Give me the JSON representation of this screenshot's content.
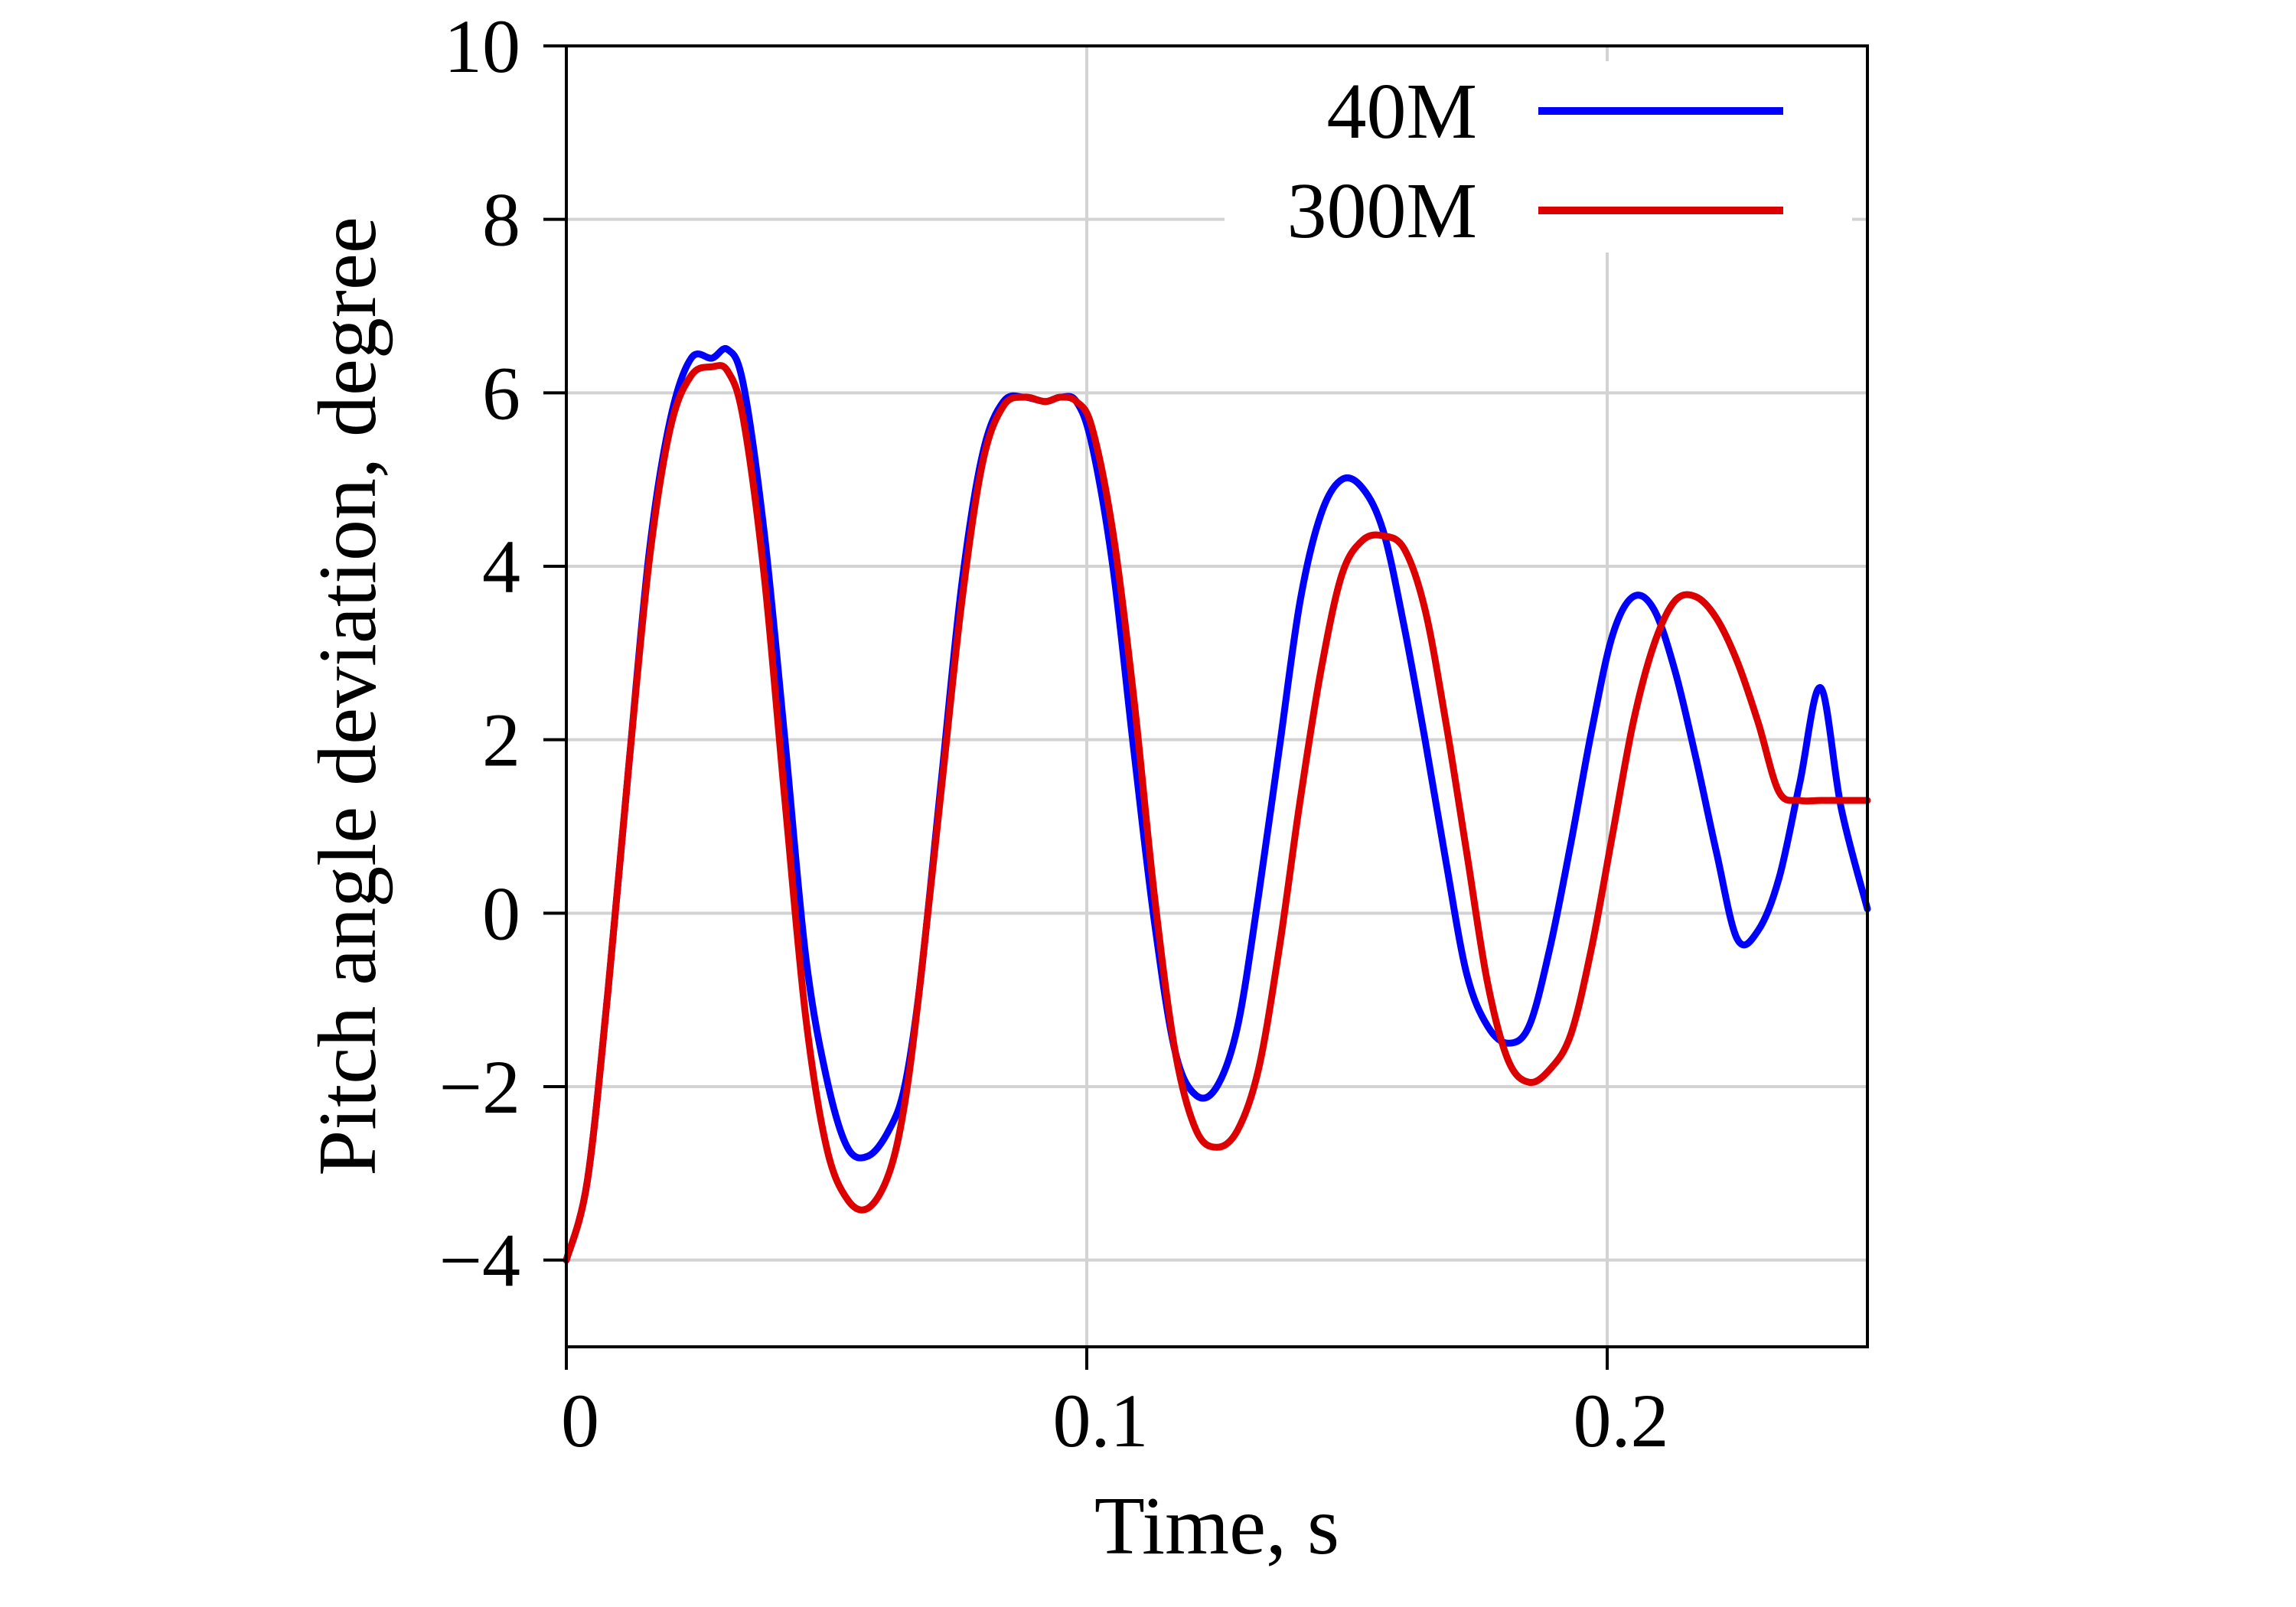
{
  "chart_data": {
    "type": "line",
    "xlabel": "Time, s",
    "ylabel": "Pitch angle deviation, degree",
    "xlim": [
      0,
      0.25
    ],
    "ylim": [
      -5,
      10
    ],
    "xticks": [
      0,
      0.1,
      0.2
    ],
    "xtick_labels": [
      "0",
      "0.1",
      "0.2"
    ],
    "yticks": [
      -4,
      -2,
      0,
      2,
      4,
      6,
      8,
      10
    ],
    "ytick_labels": [
      "−4",
      "−2",
      "0",
      "2",
      "4",
      "6",
      "8",
      "10"
    ],
    "grid": true,
    "legend_position": "top-right",
    "series": [
      {
        "name": "40M",
        "color": "#0000ff",
        "x": [
          0,
          0.004,
          0.008,
          0.012,
          0.016,
          0.02,
          0.024,
          0.028,
          0.031,
          0.034,
          0.038,
          0.042,
          0.046,
          0.05,
          0.054,
          0.058,
          0.062,
          0.065,
          0.068,
          0.072,
          0.076,
          0.08,
          0.084,
          0.088,
          0.092,
          0.095,
          0.098,
          0.101,
          0.105,
          0.109,
          0.113,
          0.117,
          0.121,
          0.125,
          0.129,
          0.133,
          0.137,
          0.141,
          0.145,
          0.149,
          0.153,
          0.157,
          0.161,
          0.165,
          0.169,
          0.173,
          0.177,
          0.181,
          0.185,
          0.189,
          0.193,
          0.197,
          0.201,
          0.205,
          0.209,
          0.213,
          0.217,
          0.221,
          0.225,
          0.229,
          0.233,
          0.237,
          0.241,
          0.245,
          0.25
        ],
        "y": [
          -4.0,
          -3.1,
          -0.9,
          1.7,
          4.2,
          5.7,
          6.4,
          6.4,
          6.5,
          6.1,
          4.4,
          2.0,
          -0.5,
          -1.9,
          -2.7,
          -2.8,
          -2.5,
          -2.0,
          -0.8,
          1.5,
          3.8,
          5.3,
          5.9,
          5.95,
          5.9,
          5.95,
          5.9,
          5.4,
          4.0,
          1.9,
          -0.1,
          -1.6,
          -2.1,
          -2.0,
          -1.3,
          0.2,
          1.9,
          3.6,
          4.6,
          5.0,
          4.9,
          4.4,
          3.3,
          2.0,
          0.6,
          -0.7,
          -1.3,
          -1.5,
          -1.3,
          -0.4,
          0.8,
          2.1,
          3.2,
          3.65,
          3.5,
          2.8,
          1.8,
          0.7,
          -0.3,
          -0.2,
          0.4,
          1.5,
          2.6,
          1.2,
          0.05
        ]
      },
      {
        "name": "300M",
        "color": "#dd0000",
        "x": [
          0,
          0.004,
          0.008,
          0.012,
          0.016,
          0.02,
          0.024,
          0.028,
          0.031,
          0.034,
          0.038,
          0.042,
          0.046,
          0.05,
          0.054,
          0.058,
          0.062,
          0.065,
          0.068,
          0.072,
          0.076,
          0.08,
          0.084,
          0.088,
          0.092,
          0.095,
          0.098,
          0.101,
          0.105,
          0.109,
          0.113,
          0.117,
          0.121,
          0.125,
          0.129,
          0.133,
          0.137,
          0.141,
          0.145,
          0.149,
          0.153,
          0.157,
          0.161,
          0.165,
          0.169,
          0.173,
          0.177,
          0.181,
          0.185,
          0.189,
          0.193,
          0.197,
          0.201,
          0.205,
          0.209,
          0.213,
          0.217,
          0.221,
          0.225,
          0.229,
          0.233,
          0.237,
          0.241,
          0.245,
          0.25
        ],
        "y": [
          -4.0,
          -3.1,
          -0.9,
          1.7,
          4.1,
          5.6,
          6.2,
          6.3,
          6.25,
          5.7,
          3.9,
          1.3,
          -1.2,
          -2.7,
          -3.3,
          -3.4,
          -3.0,
          -2.2,
          -0.8,
          1.4,
          3.6,
          5.2,
          5.85,
          5.95,
          5.9,
          5.95,
          5.9,
          5.6,
          4.4,
          2.5,
          0.2,
          -1.6,
          -2.5,
          -2.7,
          -2.5,
          -1.8,
          -0.4,
          1.3,
          2.8,
          3.9,
          4.3,
          4.35,
          4.2,
          3.5,
          2.2,
          0.7,
          -0.8,
          -1.7,
          -1.95,
          -1.8,
          -1.4,
          -0.4,
          0.9,
          2.2,
          3.1,
          3.6,
          3.65,
          3.4,
          2.9,
          2.2,
          1.4,
          1.3,
          1.3,
          1.3,
          1.3
        ]
      }
    ]
  }
}
